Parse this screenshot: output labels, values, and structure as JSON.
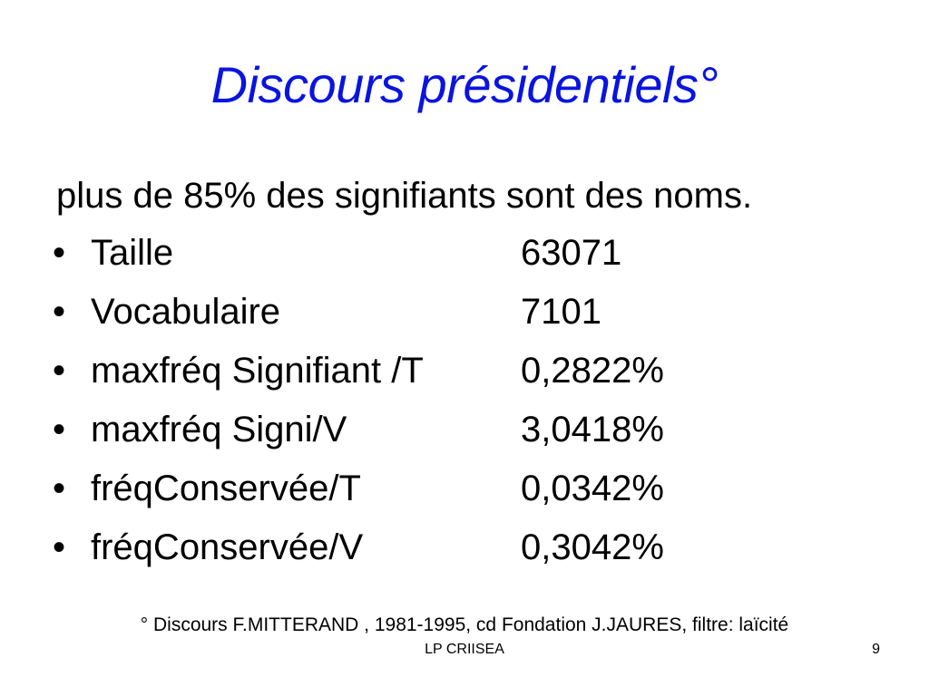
{
  "slide": {
    "title": "Discours présidentiels°",
    "intro": "plus de 85% des signifiants sont des noms.",
    "bullet_glyph": "•",
    "items": [
      {
        "label": "Taille",
        "value": "63071"
      },
      {
        "label": "Vocabulaire",
        "value": "7101"
      },
      {
        "label": "maxfréq Signifiant /T",
        "value": "0,2822%"
      },
      {
        "label": "maxfréq Signi/V",
        "value": "3,0418%"
      },
      {
        "label": "fréqConservée/T",
        "value": "0,0342%"
      },
      {
        "label": "fréqConservée/V",
        "value": "0,3042%"
      }
    ],
    "footnote": "° Discours F.MITTERAND , 1981-1995, cd Fondation J.JAURES, filtre: laïcité",
    "footer": "LP CRIISEA",
    "page_number": "9"
  },
  "colors": {
    "title": "#0a14e0",
    "text": "#000000",
    "background": "#ffffff"
  }
}
